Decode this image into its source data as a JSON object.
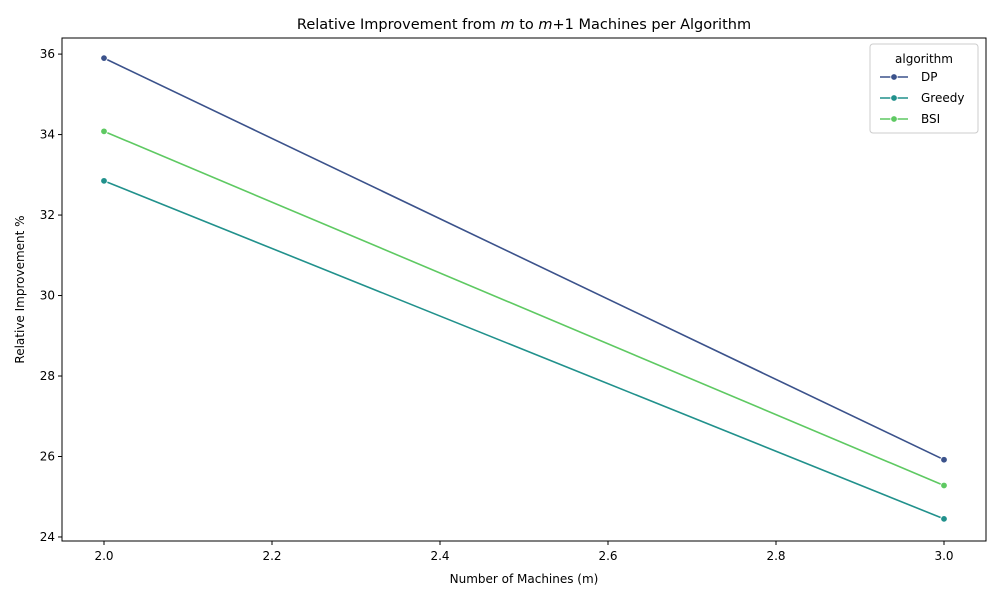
{
  "chart_data": {
    "type": "line",
    "title": "Relative Improvement from m to m+1 Machines per Algorithm",
    "xlabel": "Number of Machines (m)",
    "ylabel": "Relative Improvement %",
    "xlim": [
      1.95,
      3.05
    ],
    "ylim": [
      23.9,
      36.4
    ],
    "x_ticks": [
      "2.0",
      "2.2",
      "2.4",
      "2.6",
      "2.8",
      "3.0"
    ],
    "y_ticks": [
      "24",
      "26",
      "28",
      "30",
      "32",
      "34",
      "36"
    ],
    "grid": false,
    "legend": {
      "title": "algorithm",
      "placement": "top-right"
    },
    "series": [
      {
        "name": "DP",
        "color": "#3b528b",
        "x": [
          2.0,
          3.0
        ],
        "y": [
          35.9,
          25.92
        ]
      },
      {
        "name": "Greedy",
        "color": "#21918c",
        "x": [
          2.0,
          3.0
        ],
        "y": [
          32.85,
          24.45
        ]
      },
      {
        "name": "BSI",
        "color": "#5ec962",
        "x": [
          2.0,
          3.0
        ],
        "y": [
          34.08,
          25.28
        ]
      }
    ]
  }
}
